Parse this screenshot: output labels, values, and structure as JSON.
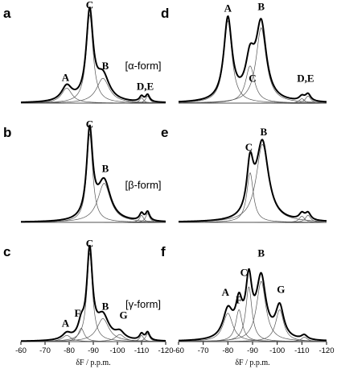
{
  "chart_data": {
    "type": "line",
    "layout": "3x2 grid of 19F NMR spectra",
    "xlabel": "δF / p.p.m.",
    "xlim": [
      -60,
      -120
    ],
    "x_axis": "reversed",
    "x_ticks": [
      -60,
      -70,
      -80,
      -90,
      -100,
      -110,
      -120
    ],
    "tick_labels": [
      "-60",
      "-70",
      "-80",
      "-90",
      "-100",
      "-110",
      "-120"
    ],
    "panels": [
      {
        "id": "a",
        "label": "a",
        "form_label": "[α-form]",
        "show_x_axis": false,
        "peaks": [
          {
            "label": "A",
            "center": -79,
            "height": 0.17,
            "width": 2.6
          },
          {
            "label": "C",
            "center": -88.5,
            "height": 1.0,
            "width": 1.7
          },
          {
            "label": "B",
            "center": -94,
            "height": 0.28,
            "width": 3.2
          },
          {
            "label": "",
            "center": -110,
            "height": 0.06,
            "width": 1.0
          },
          {
            "label": "",
            "center": -112.5,
            "height": 0.08,
            "width": 1.0
          }
        ],
        "annotations": [
          {
            "text": "A",
            "x": -78.5,
            "y": 0.25
          },
          {
            "text": "C",
            "x": -88.5,
            "y": 1.07
          },
          {
            "text": "B",
            "x": -95,
            "y": 0.38
          },
          {
            "text": "D,E",
            "x": -111.5,
            "y": 0.15
          }
        ]
      },
      {
        "id": "b",
        "label": "b",
        "form_label": "[β-form]",
        "show_x_axis": false,
        "peaks": [
          {
            "label": "C",
            "center": -88.5,
            "height": 1.0,
            "width": 1.5
          },
          {
            "label": "B",
            "center": -94.5,
            "height": 0.44,
            "width": 3.2
          },
          {
            "label": "",
            "center": -110,
            "height": 0.08,
            "width": 1.0
          },
          {
            "label": "",
            "center": -112.5,
            "height": 0.1,
            "width": 1.0
          }
        ],
        "annotations": [
          {
            "text": "C",
            "x": -88.5,
            "y": 1.07
          },
          {
            "text": "B",
            "x": -95,
            "y": 0.57
          }
        ]
      },
      {
        "id": "c",
        "label": "c",
        "form_label": "[γ-form]",
        "show_x_axis": true,
        "peaks": [
          {
            "label": "A",
            "center": -79,
            "height": 0.07,
            "width": 2.2
          },
          {
            "label": "F",
            "center": -85,
            "height": 0.15,
            "width": 1.5
          },
          {
            "label": "C",
            "center": -88.5,
            "height": 1.0,
            "width": 1.4
          },
          {
            "label": "B",
            "center": -94,
            "height": 0.26,
            "width": 3.0
          },
          {
            "label": "G",
            "center": -101,
            "height": 0.08,
            "width": 2.3
          },
          {
            "label": "",
            "center": -110,
            "height": 0.07,
            "width": 1.0
          },
          {
            "label": "",
            "center": -112.5,
            "height": 0.09,
            "width": 1.0
          }
        ],
        "annotations": [
          {
            "text": "A",
            "x": -78.5,
            "y": 0.17
          },
          {
            "text": "F",
            "x": -83.5,
            "y": 0.28
          },
          {
            "text": "C",
            "x": -88.5,
            "y": 1.07
          },
          {
            "text": "B",
            "x": -95,
            "y": 0.36
          },
          {
            "text": "G",
            "x": -102.5,
            "y": 0.26
          }
        ]
      },
      {
        "id": "d",
        "label": "d",
        "form_label": "",
        "show_x_axis": false,
        "peaks": [
          {
            "label": "A",
            "center": -80,
            "height": 0.93,
            "width": 2.0
          },
          {
            "label": "C",
            "center": -89,
            "height": 0.42,
            "width": 2.2
          },
          {
            "label": "B",
            "center": -93.5,
            "height": 0.85,
            "width": 2.5
          },
          {
            "label": "",
            "center": -110,
            "height": 0.05,
            "width": 1.3
          },
          {
            "label": "",
            "center": -112.5,
            "height": 0.08,
            "width": 1.3
          }
        ],
        "annotations": [
          {
            "text": "A",
            "x": -80,
            "y": 1.03
          },
          {
            "text": "B",
            "x": -93.5,
            "y": 1.05
          },
          {
            "text": "C",
            "x": -90,
            "y": 0.24
          },
          {
            "text": "D,E",
            "x": -111.5,
            "y": 0.24
          }
        ]
      },
      {
        "id": "e",
        "label": "e",
        "form_label": "",
        "show_x_axis": false,
        "peaks": [
          {
            "label": "C",
            "center": -89,
            "height": 0.56,
            "width": 1.6
          },
          {
            "label": "B",
            "center": -94,
            "height": 0.88,
            "width": 3.0
          },
          {
            "label": "",
            "center": -110,
            "height": 0.07,
            "width": 1.3
          },
          {
            "label": "",
            "center": -112.5,
            "height": 0.08,
            "width": 1.3
          }
        ],
        "annotations": [
          {
            "text": "C",
            "x": -88.5,
            "y": 0.81
          },
          {
            "text": "B",
            "x": -94.5,
            "y": 0.98
          }
        ]
      },
      {
        "id": "f",
        "label": "f",
        "form_label": "",
        "show_x_axis": true,
        "peaks": [
          {
            "label": "A",
            "center": -80,
            "height": 0.32,
            "width": 2.4
          },
          {
            "label": "F",
            "center": -84.5,
            "height": 0.36,
            "width": 1.6
          },
          {
            "label": "C",
            "center": -88.5,
            "height": 0.62,
            "width": 1.5
          },
          {
            "label": "B",
            "center": -93.5,
            "height": 0.68,
            "width": 2.3
          },
          {
            "label": "G",
            "center": -101,
            "height": 0.36,
            "width": 2.0
          },
          {
            "label": "",
            "center": -111,
            "height": 0.05,
            "width": 1.5
          }
        ],
        "annotations": [
          {
            "text": "A",
            "x": -79,
            "y": 0.52
          },
          {
            "text": "F",
            "x": -84.5,
            "y": 0.43
          },
          {
            "text": "C",
            "x": -86.5,
            "y": 0.74
          },
          {
            "text": "B",
            "x": -93.5,
            "y": 0.96
          },
          {
            "text": "G",
            "x": -101.5,
            "y": 0.55
          }
        ]
      }
    ]
  }
}
